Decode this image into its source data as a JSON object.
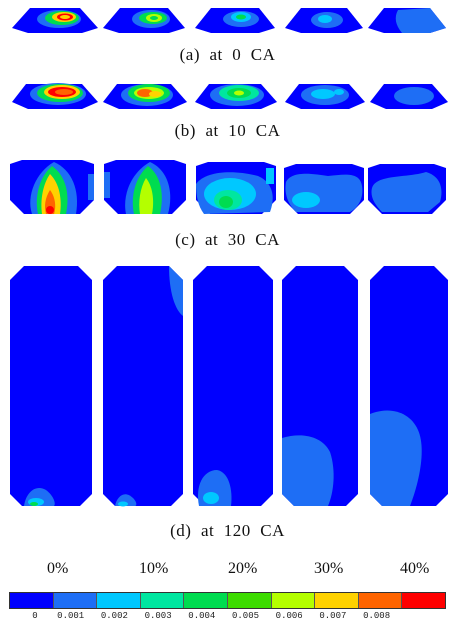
{
  "captions": {
    "a": "(a)  at  0  CA",
    "b": "(b)  at  10  CA",
    "c": "(c)  at  30  CA",
    "d": "(d)  at  120  CA"
  },
  "percent_labels": [
    "0%",
    "10%",
    "20%",
    "30%",
    "40%"
  ],
  "colorbar": {
    "colors": [
      "#0000ff",
      "#1e6ef5",
      "#00c8ff",
      "#00e6a0",
      "#00dc50",
      "#3cdc00",
      "#b4ff00",
      "#ffd200",
      "#ff6400",
      "#ff0000"
    ],
    "ticks": [
      "0",
      "0.001",
      "0.002",
      "0.003",
      "0.004",
      "0.005",
      "0.006",
      "0.007",
      "0.008"
    ]
  },
  "colors": {
    "background_field": "#0000ff",
    "mid_blue": "#1e6ef5",
    "cyan": "#00c8ff",
    "green": "#00dc50",
    "yellow": "#ffd200",
    "red": "#ff0000"
  }
}
